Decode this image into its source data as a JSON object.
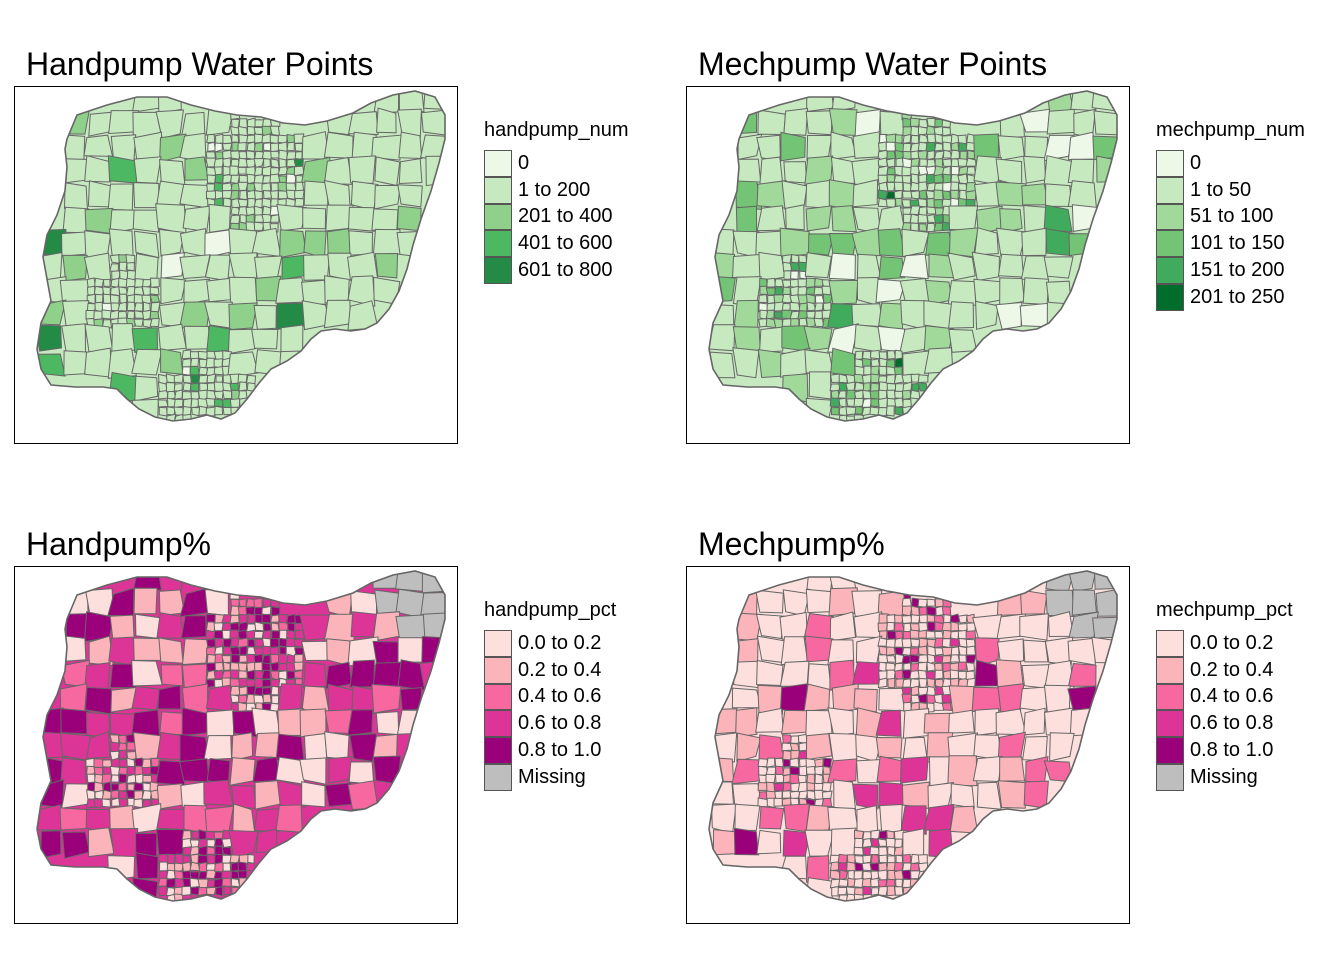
{
  "panels": [
    {
      "title": "Handpump Water Points",
      "legend_title": "handpump_num",
      "legend": [
        {
          "label": "0",
          "color": "#edf8e9"
        },
        {
          "label": "1 to 200",
          "color": "#c7e9c0"
        },
        {
          "label": "201 to 400",
          "color": "#8fd18a"
        },
        {
          "label": "401 to 600",
          "color": "#4db862"
        },
        {
          "label": "601 to 800",
          "color": "#238b45"
        }
      ],
      "base_color": "#c7e9c0",
      "seed": 11,
      "fill_weights": [
        2,
        88,
        7,
        2,
        1
      ],
      "missing_northeast": false
    },
    {
      "title": "Mechpump Water Points",
      "legend_title": "mechpump_num",
      "legend": [
        {
          "label": "0",
          "color": "#edf8e9"
        },
        {
          "label": "1 to 50",
          "color": "#c7e9c0"
        },
        {
          "label": "51 to 100",
          "color": "#a1d99b"
        },
        {
          "label": "101 to 150",
          "color": "#74c476"
        },
        {
          "label": "151 to 200",
          "color": "#41ab5d"
        },
        {
          "label": "201 to 250",
          "color": "#006d2c"
        }
      ],
      "base_color": "#c7e9c0",
      "seed": 29,
      "fill_weights": [
        6,
        62,
        18,
        9,
        4,
        1
      ],
      "missing_northeast": false
    },
    {
      "title": "Handpump%",
      "legend_title": "handpump_pct",
      "legend": [
        {
          "label": "0.0 to 0.2",
          "color": "#fde0dd"
        },
        {
          "label": "0.2 to 0.4",
          "color": "#fbb4b9"
        },
        {
          "label": "0.4 to 0.6",
          "color": "#f768a1"
        },
        {
          "label": "0.6 to 0.8",
          "color": "#dd3497"
        },
        {
          "label": "0.8 to 1.0",
          "color": "#99007a"
        },
        {
          "label": "Missing",
          "color": "#bebebe"
        }
      ],
      "base_color": "#dd3497",
      "seed": 47,
      "fill_weights": [
        18,
        16,
        16,
        25,
        25,
        0
      ],
      "missing_northeast": true
    },
    {
      "title": "Mechpump%",
      "legend_title": "mechpump_pct",
      "legend": [
        {
          "label": "0.0 to 0.2",
          "color": "#fde0dd"
        },
        {
          "label": "0.2 to 0.4",
          "color": "#fbb4b9"
        },
        {
          "label": "0.4 to 0.6",
          "color": "#f768a1"
        },
        {
          "label": "0.6 to 0.8",
          "color": "#dd3497"
        },
        {
          "label": "0.8 to 1.0",
          "color": "#99007a"
        },
        {
          "label": "Missing",
          "color": "#bebebe"
        }
      ],
      "base_color": "#fde0dd",
      "seed": 83,
      "fill_weights": [
        52,
        26,
        9,
        7,
        6,
        0
      ],
      "missing_northeast": true
    }
  ],
  "boundary_color": "#666666"
}
